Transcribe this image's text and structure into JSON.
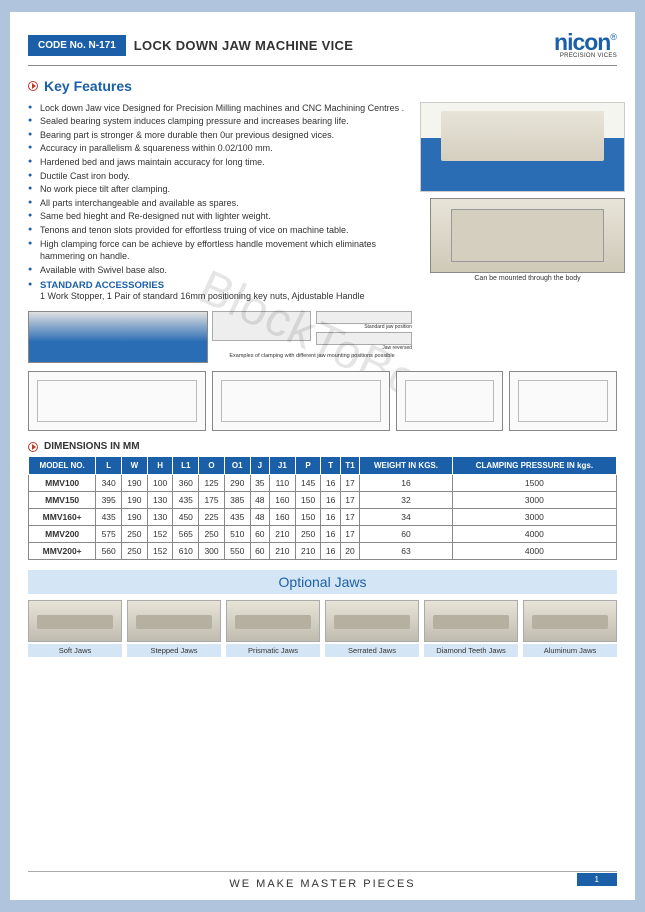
{
  "header": {
    "code": "CODE No. N-171",
    "title": "LOCK DOWN JAW MACHINE VICE",
    "brand": "nicon",
    "brand_sub": "PRECISION VICES",
    "reg": "®"
  },
  "key_features_title": "Key Features",
  "features": [
    "Lock down Jaw vice Designed for Precision Milling machines and CNC Machining Centres .",
    "Sealed bearing system induces clamping pressure and increases bearing life.",
    "Bearing part is stronger & more durable then 0ur previous designed vices.",
    "Accuracy in parallelism & squareness within 0.02/100 mm.",
    "Hardened bed and jaws maintain accuracy for long time.",
    "Ductile Cast iron body.",
    "No work piece tilt after clamping.",
    "All parts interchangeable and available as spares.",
    "Same bed hieght and Re-designed nut with lighter weight.",
    "Tenons and tenon slots provided for effortless truing of vice on machine table.",
    "High clamping force can be achieve by effortless handle movement which eliminates  hammering on handle.",
    "Available with Swivel base also."
  ],
  "accessories": {
    "heading": "STANDARD ACCESSORIES",
    "text": "1 Work Stopper,  1 Pair of standard 16mm positioning key nuts, Ajdustable Handle"
  },
  "secondary_caption": "Can be mounted through the body",
  "clamp_example_caption": "Examples of clamping with different jaw mounting positions possible",
  "clamp_label_top": "Standard jaw position",
  "clamp_label_bot": "Jaw reversed",
  "dims_header": "DIMENSIONS IN MM",
  "table": {
    "columns": [
      "MODEL NO.",
      "L",
      "W",
      "H",
      "L1",
      "O",
      "O1",
      "J",
      "J1",
      "P",
      "T",
      "T1",
      "WEIGHT IN KGS.",
      "CLAMPING PRESSURE IN kgs."
    ],
    "rows": [
      [
        "MMV100",
        "340",
        "190",
        "100",
        "360",
        "125",
        "290",
        "35",
        "110",
        "145",
        "16",
        "17",
        "16",
        "1500"
      ],
      [
        "MMV150",
        "395",
        "190",
        "130",
        "435",
        "175",
        "385",
        "48",
        "160",
        "150",
        "16",
        "17",
        "32",
        "3000"
      ],
      [
        "MMV160+",
        "435",
        "190",
        "130",
        "450",
        "225",
        "435",
        "48",
        "160",
        "150",
        "16",
        "17",
        "34",
        "3000"
      ],
      [
        "MMV200",
        "575",
        "250",
        "152",
        "565",
        "250",
        "510",
        "60",
        "210",
        "250",
        "16",
        "17",
        "60",
        "4000"
      ],
      [
        "MMV200+",
        "560",
        "250",
        "152",
        "610",
        "300",
        "550",
        "60",
        "210",
        "210",
        "16",
        "20",
        "63",
        "4000"
      ]
    ],
    "header_bg": "#1b5fa8",
    "header_color": "#ffffff",
    "border_color": "#888888"
  },
  "optional_title": "Optional Jaws",
  "jaws": [
    "Soft Jaws",
    "Stepped Jaws",
    "Prismatic Jaws",
    "Serrated Jaws",
    "Diamond Teeth Jaws",
    "Aluminum  Jaws"
  ],
  "footer": "WE MAKE MASTER PIECES",
  "page_no": "1",
  "watermark": "BlockToBox",
  "colors": {
    "brand_blue": "#1b5fa8",
    "light_blue": "#d4e6f5",
    "base_blue": "#2a6db5"
  }
}
